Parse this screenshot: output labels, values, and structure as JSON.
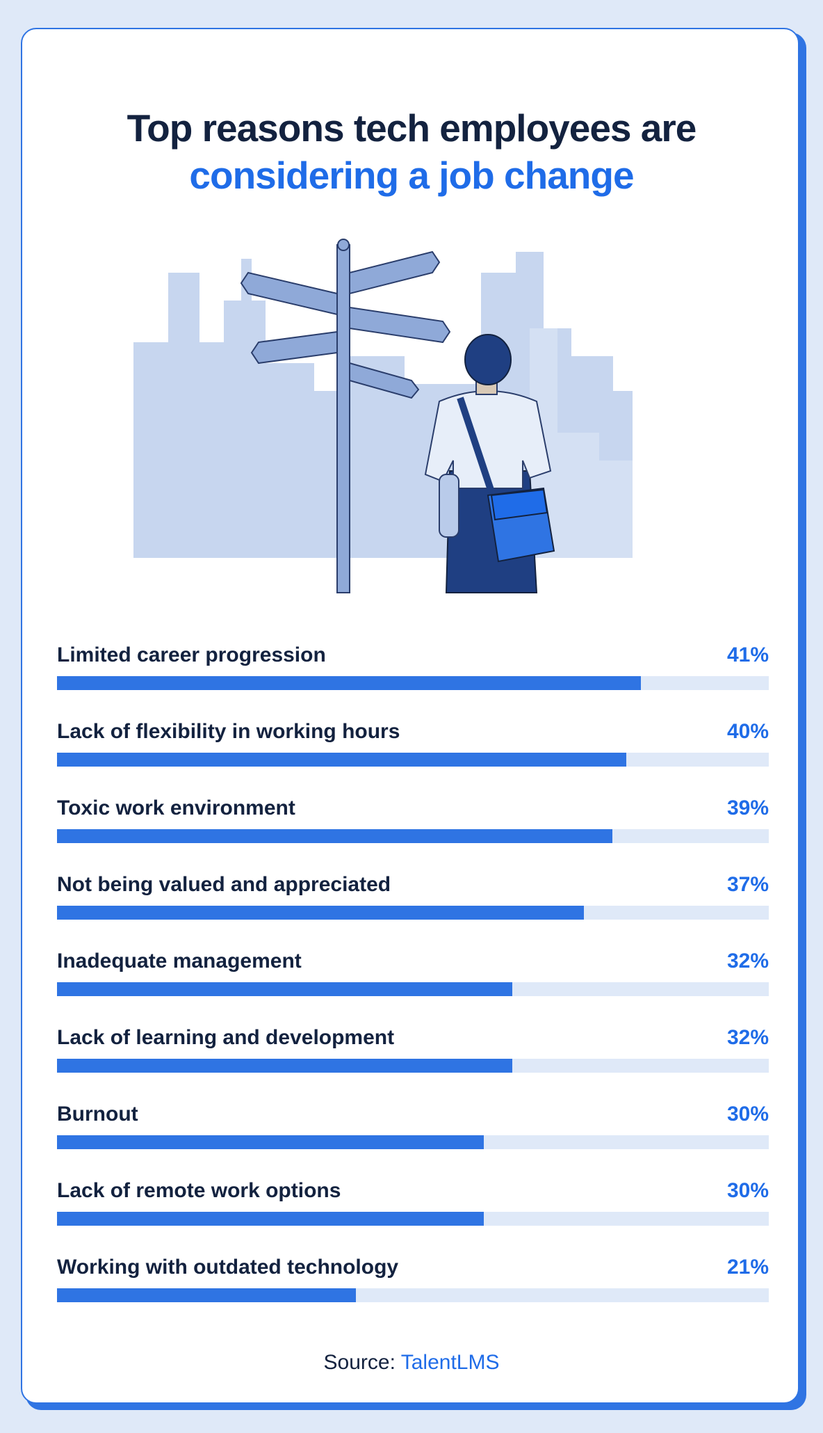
{
  "header": {
    "title_line1": "Top reasons tech employees are",
    "title_line2": "considering a job change"
  },
  "illustration": {
    "icon": "signpost-person-city-illustration"
  },
  "colors": {
    "accent": "#2f74e3",
    "dark_text": "#13223f",
    "track": "#dfe9f8",
    "background": "#dfe9f8"
  },
  "chart_data": {
    "type": "bar",
    "orientation": "horizontal",
    "title": "Top reasons tech employees are considering a job change",
    "categories": [
      "Limited career progression",
      "Lack of flexibility in working hours",
      "Toxic work environment",
      "Not being valued and appreciated",
      "Inadequate management",
      "Lack of learning and development",
      "Burnout",
      "Lack of remote work options",
      "Working with outdated technology"
    ],
    "values": [
      41,
      40,
      39,
      37,
      32,
      32,
      30,
      30,
      21
    ],
    "value_labels": [
      "41%",
      "40%",
      "39%",
      "37%",
      "32%",
      "32%",
      "30%",
      "30%",
      "21%"
    ],
    "xlim": [
      0,
      50
    ],
    "grid": false
  },
  "footer": {
    "source_prefix": "Source:",
    "source_name": "TalentLMS"
  }
}
